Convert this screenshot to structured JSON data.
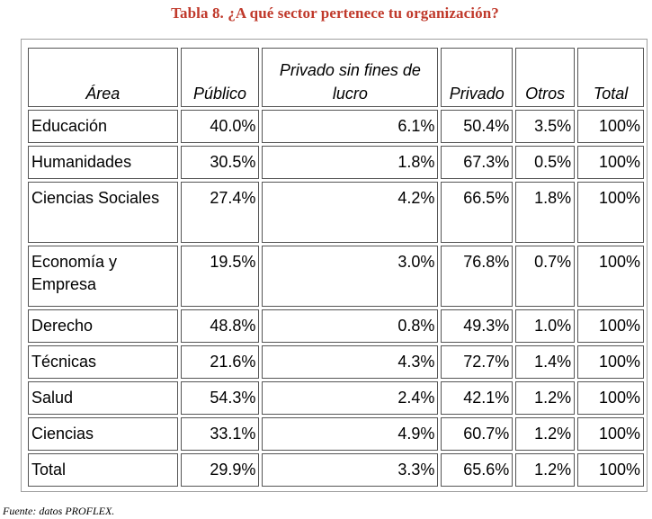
{
  "caption": "Tabla 8. ¿A qué sector pertenece tu organización?",
  "colors": {
    "caption": "#c0392b",
    "border": "#555555"
  },
  "table": {
    "headers": {
      "area": "Área",
      "publico": "Público",
      "privado_sin_fines": "Privado sin fines de lucro",
      "privado": "Privado",
      "otros": "Otros",
      "total": "Total"
    },
    "rows": [
      {
        "area": "Educación",
        "publico": "40.0%",
        "privado_sin_fines": "6.1%",
        "privado": "50.4%",
        "otros": "3.5%",
        "total": "100%"
      },
      {
        "area": "Humanidades",
        "publico": "30.5%",
        "privado_sin_fines": "1.8%",
        "privado": "67.3%",
        "otros": "0.5%",
        "total": "100%"
      },
      {
        "area": "Ciencias Sociales",
        "publico": "27.4%",
        "privado_sin_fines": "4.2%",
        "privado": "66.5%",
        "otros": "1.8%",
        "total": "100%"
      },
      {
        "area": "Economía y Empresa",
        "publico": "19.5%",
        "privado_sin_fines": "3.0%",
        "privado": "76.8%",
        "otros": "0.7%",
        "total": "100%"
      },
      {
        "area": "Derecho",
        "publico": "48.8%",
        "privado_sin_fines": "0.8%",
        "privado": "49.3%",
        "otros": "1.0%",
        "total": "100%"
      },
      {
        "area": "Técnicas",
        "publico": "21.6%",
        "privado_sin_fines": "4.3%",
        "privado": "72.7%",
        "otros": "1.4%",
        "total": "100%"
      },
      {
        "area": "Salud",
        "publico": "54.3%",
        "privado_sin_fines": "2.4%",
        "privado": "42.1%",
        "otros": "1.2%",
        "total": "100%"
      },
      {
        "area": "Ciencias",
        "publico": "33.1%",
        "privado_sin_fines": "4.9%",
        "privado": "60.7%",
        "otros": "1.2%",
        "total": "100%"
      },
      {
        "area": "Total",
        "publico": "29.9%",
        "privado_sin_fines": "3.3%",
        "privado": "65.6%",
        "otros": "1.2%",
        "total": "100%"
      }
    ]
  },
  "source": "Fuente: datos PROFLEX."
}
